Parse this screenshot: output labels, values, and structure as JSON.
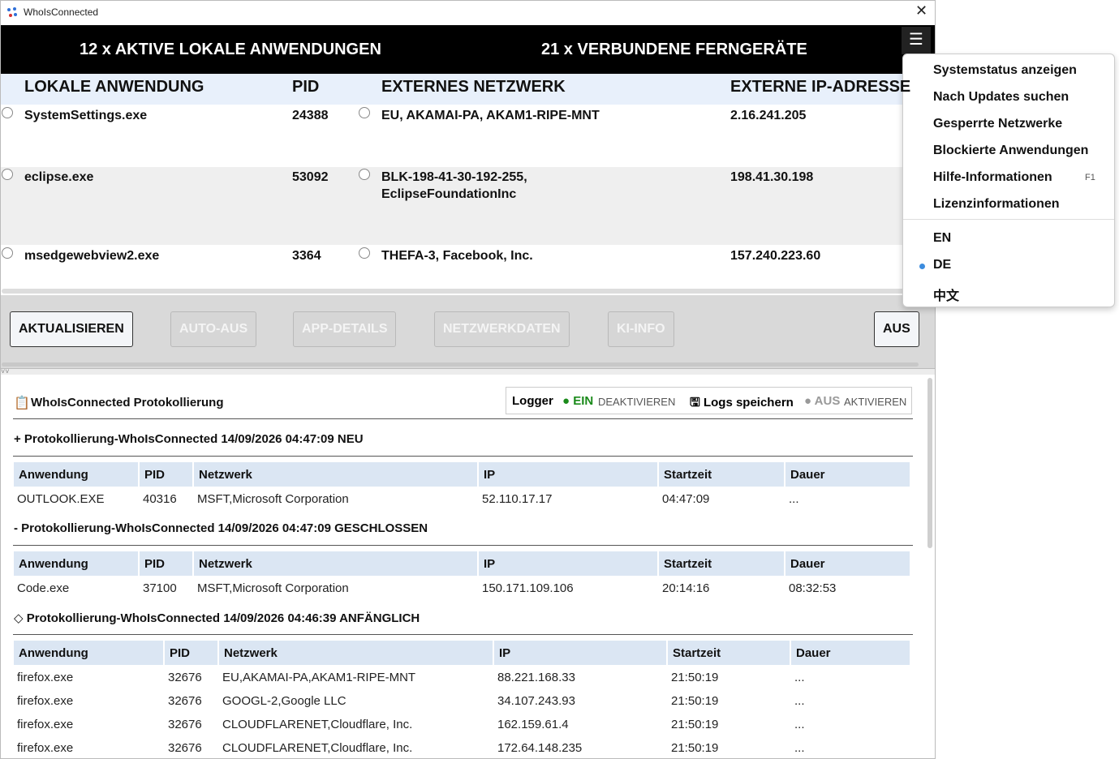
{
  "window": {
    "title": "WhoIsConnected"
  },
  "header": {
    "left": "12 x AKTIVE LOKALE ANWENDUNGEN",
    "right": "21 x VERBUNDENE FERNGERÄTE"
  },
  "connections": {
    "columns": [
      "LOKALE ANWENDUNG",
      "PID",
      "EXTERNES NETZWERK",
      "EXTERNE IP-ADRESSE"
    ],
    "rows": [
      [
        "SystemSettings.exe",
        "24388",
        "EU, AKAMAI-PA, AKAM1-RIPE-MNT",
        "2.16.241.205"
      ],
      [
        "eclipse.exe",
        "53092",
        "BLK-198-41-30-192-255, EclipseFoundationInc",
        "198.41.30.198"
      ],
      [
        "msedgewebview2.exe",
        "3364",
        "THEFA-3, Facebook, Inc.",
        "157.240.223.60"
      ]
    ]
  },
  "buttons": [
    {
      "label": "AKTUALISIEREN",
      "enabled": true
    },
    {
      "label": "AUTO-AUS",
      "enabled": false
    },
    {
      "label": "APP-DETAILS",
      "enabled": false
    },
    {
      "label": "NETZWERKDATEN",
      "enabled": false
    },
    {
      "label": "KI-INFO",
      "enabled": false
    },
    {
      "label": "AUS",
      "enabled": true
    }
  ],
  "log": {
    "title": "WhoIsConnected Protokollierung",
    "logger": {
      "label": "Logger",
      "status": "EIN",
      "action": "DEAKTIVIEREN"
    },
    "save": {
      "label": "Logs speichern",
      "status": "AUS",
      "action": "AKTIVIEREN"
    },
    "sections": [
      {
        "heading": "+ Protokollierung-WhoIsConnected 14/09/2026 04:47:09 NEU",
        "columns": [
          "Anwendung",
          "PID",
          "Netzwerk",
          "IP",
          "Startzeit",
          "Dauer"
        ],
        "rows": [
          [
            "OUTLOOK.EXE",
            "40316",
            "MSFT,Microsoft Corporation",
            "52.110.17.17",
            "04:47:09",
            "..."
          ]
        ]
      },
      {
        "heading": "- Protokollierung-WhoIsConnected 14/09/2026 04:47:09 GESCHLOSSEN",
        "columns": [
          "Anwendung",
          "PID",
          "Netzwerk",
          "IP",
          "Startzeit",
          "Dauer"
        ],
        "rows": [
          [
            "Code.exe",
            "37100",
            "MSFT,Microsoft Corporation",
            "150.171.109.106",
            "20:14:16",
            "08:32:53"
          ]
        ]
      },
      {
        "heading": "◇ Protokollierung-WhoIsConnected 14/09/2026 04:46:39 ANFÄNGLICH",
        "columns": [
          "Anwendung",
          "PID",
          "Netzwerk",
          "IP",
          "Startzeit",
          "Dauer"
        ],
        "rows": [
          [
            "firefox.exe",
            "32676",
            "EU,AKAMAI-PA,AKAM1-RIPE-MNT",
            "88.221.168.33",
            "21:50:19",
            "..."
          ],
          [
            "firefox.exe",
            "32676",
            "GOOGL-2,Google LLC",
            "34.107.243.93",
            "21:50:19",
            "..."
          ],
          [
            "firefox.exe",
            "32676",
            "CLOUDFLARENET,Cloudflare, Inc.",
            "162.159.61.4",
            "21:50:19",
            "..."
          ],
          [
            "firefox.exe",
            "32676",
            "CLOUDFLARENET,Cloudflare, Inc.",
            "172.64.148.235",
            "21:50:19",
            "..."
          ]
        ]
      }
    ]
  },
  "menu": {
    "items": [
      {
        "label": "Systemstatus anzeigen"
      },
      {
        "label": "Nach Updates suchen"
      },
      {
        "label": "Gesperrte Netzwerke"
      },
      {
        "label": "Blockierte Anwendungen"
      },
      {
        "label": "Hilfe-Informationen",
        "shortcut": "F1"
      },
      {
        "label": "Lizenzinformationen"
      }
    ],
    "languages": [
      "EN",
      "DE",
      "中文"
    ],
    "selected_language": "DE"
  }
}
